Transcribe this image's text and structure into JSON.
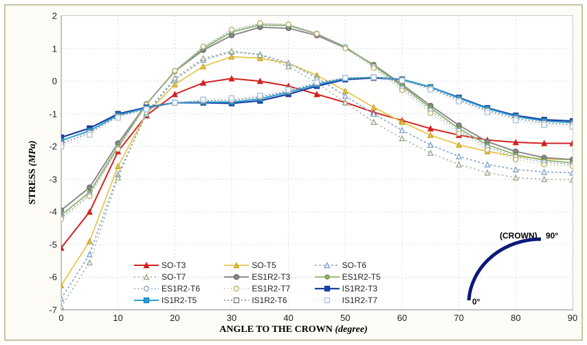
{
  "chart": {
    "type": "line",
    "background_color": "#ffffff",
    "frame_color": "#c7c2a0",
    "grid_color": "#dcdcdc",
    "grid_dash": "2,3",
    "axis_color": "#8a8a8a",
    "xlim": [
      0,
      90
    ],
    "ylim": [
      -7,
      2
    ],
    "xtick_step": 10,
    "ytick_step": 1,
    "x_axis_label": "ANGLE TO THE CROWN",
    "x_axis_unit": "(degree)",
    "y_axis_label": "STRESS",
    "y_axis_unit": "(MPa)",
    "label_fontsize_pt": 14,
    "tick_fontsize_pt": 13,
    "legend_fontsize_pt": 12,
    "legend_cols": 3,
    "x_values": [
      0,
      5,
      10,
      15,
      20,
      25,
      30,
      35,
      40,
      45,
      50,
      55,
      60,
      65,
      70,
      75,
      80,
      85,
      90
    ],
    "series": [
      {
        "name": "SO-T3",
        "color": "#d22222",
        "line_width": 2.0,
        "line_dash": "",
        "marker": "triangle-solid",
        "marker_fill": "#d22222",
        "marker_stroke": "#d22222",
        "marker_size": 7,
        "values": [
          -5.1,
          -4.0,
          -2.15,
          -1.05,
          -0.4,
          -0.05,
          0.08,
          0.0,
          -0.15,
          -0.4,
          -0.65,
          -0.95,
          -1.2,
          -1.45,
          -1.65,
          -1.8,
          -1.87,
          -1.9,
          -1.9
        ]
      },
      {
        "name": "SO-T5",
        "color": "#e8c64b",
        "line_width": 1.8,
        "line_dash": "",
        "marker": "triangle-solid",
        "marker_fill": "#e8c64b",
        "marker_stroke": "#c8a62b",
        "marker_size": 7,
        "values": [
          -6.25,
          -4.9,
          -2.6,
          -1.0,
          -0.1,
          0.45,
          0.75,
          0.7,
          0.55,
          0.18,
          -0.3,
          -0.8,
          -1.25,
          -1.65,
          -1.95,
          -2.15,
          -2.3,
          -2.38,
          -2.4
        ]
      },
      {
        "name": "SO-T6",
        "color": "#7fa3cc",
        "line_width": 1.6,
        "line_dash": "3,3",
        "marker": "triangle-open",
        "marker_fill": "#ffffff",
        "marker_stroke": "#7fa3cc",
        "marker_size": 7,
        "values": [
          -6.65,
          -5.3,
          -2.85,
          -1.0,
          0.05,
          0.65,
          0.9,
          0.82,
          0.55,
          0.1,
          -0.45,
          -1.0,
          -1.5,
          -1.95,
          -2.3,
          -2.55,
          -2.7,
          -2.78,
          -2.8
        ]
      },
      {
        "name": "SO-T7",
        "color": "#9aa98c",
        "line_width": 1.6,
        "line_dash": "2,4",
        "marker": "triangle-open",
        "marker_fill": "#ffffff",
        "marker_stroke": "#9aa98c",
        "marker_size": 7,
        "values": [
          -6.9,
          -5.55,
          -2.95,
          -0.95,
          0.1,
          0.7,
          0.92,
          0.8,
          0.45,
          -0.05,
          -0.65,
          -1.25,
          -1.75,
          -2.2,
          -2.55,
          -2.8,
          -2.95,
          -3.0,
          -3.02
        ]
      },
      {
        "name": "ES1R2-T3",
        "color": "#8a8a8a",
        "line_width": 2.0,
        "line_dash": "",
        "marker": "circle-solid",
        "marker_fill": "#8a8a8a",
        "marker_stroke": "#6a6a6a",
        "marker_size": 7,
        "values": [
          -3.95,
          -3.25,
          -1.9,
          -0.7,
          0.3,
          0.95,
          1.4,
          1.65,
          1.62,
          1.4,
          1.02,
          0.5,
          -0.1,
          -0.75,
          -1.35,
          -1.85,
          -2.15,
          -2.34,
          -2.4
        ]
      },
      {
        "name": "ES1R2-T5",
        "color": "#8fb26a",
        "line_width": 1.8,
        "line_dash": "",
        "marker": "circle-solid",
        "marker_fill": "#8fb26a",
        "marker_stroke": "#6f924a",
        "marker_size": 6,
        "values": [
          -4.1,
          -3.4,
          -2.0,
          -0.7,
          0.3,
          1.0,
          1.5,
          1.72,
          1.7,
          1.45,
          1.05,
          0.48,
          -0.15,
          -0.82,
          -1.45,
          -1.95,
          -2.25,
          -2.42,
          -2.5
        ]
      },
      {
        "name": "ES1R2-T6",
        "color": "#8aa8cc",
        "line_width": 1.6,
        "line_dash": "2,3",
        "marker": "circle-open",
        "marker_fill": "#ffffff",
        "marker_stroke": "#8aa8cc",
        "marker_size": 7,
        "values": [
          -4.18,
          -3.48,
          -2.05,
          -0.72,
          0.32,
          1.05,
          1.55,
          1.76,
          1.73,
          1.46,
          1.04,
          0.45,
          -0.22,
          -0.9,
          -1.52,
          -2.02,
          -2.32,
          -2.48,
          -2.55
        ]
      },
      {
        "name": "ES1R2-T7",
        "color": "#c2b06e",
        "line_width": 1.6,
        "line_dash": "1,4",
        "marker": "circle-open",
        "marker_fill": "#ffffff",
        "marker_stroke": "#c2b06e",
        "marker_size": 7,
        "values": [
          -4.22,
          -3.52,
          -2.08,
          -0.72,
          0.32,
          1.06,
          1.58,
          1.78,
          1.74,
          1.45,
          1.0,
          0.4,
          -0.28,
          -0.98,
          -1.6,
          -2.1,
          -2.4,
          -2.55,
          -2.6
        ]
      },
      {
        "name": "IS1R2-T3",
        "color": "#1a3fa0",
        "line_width": 2.2,
        "line_dash": "",
        "marker": "square-solid",
        "marker_fill": "#1a3fa0",
        "marker_stroke": "#1a3fa0",
        "marker_size": 7,
        "values": [
          -1.72,
          -1.44,
          -1.0,
          -0.8,
          -0.66,
          -0.66,
          -0.68,
          -0.6,
          -0.4,
          -0.15,
          0.05,
          0.1,
          0.05,
          -0.18,
          -0.5,
          -0.82,
          -1.05,
          -1.18,
          -1.22
        ]
      },
      {
        "name": "IS1R2-T5",
        "color": "#2aa0d8",
        "line_width": 2.0,
        "line_dash": "",
        "marker": "square-solid",
        "marker_fill": "#2aa0d8",
        "marker_stroke": "#1a80b8",
        "marker_size": 7,
        "values": [
          -1.82,
          -1.52,
          -1.04,
          -0.82,
          -0.66,
          -0.64,
          -0.64,
          -0.54,
          -0.34,
          -0.1,
          0.08,
          0.12,
          0.06,
          -0.18,
          -0.52,
          -0.84,
          -1.08,
          -1.22,
          -1.27
        ]
      },
      {
        "name": "IS1R2-T6",
        "color": "#808080",
        "line_width": 1.6,
        "line_dash": "2,3",
        "marker": "square-open",
        "marker_fill": "#ffffff",
        "marker_stroke": "#808080",
        "marker_size": 7,
        "values": [
          -1.92,
          -1.58,
          -1.08,
          -0.84,
          -0.66,
          -0.6,
          -0.58,
          -0.48,
          -0.3,
          -0.06,
          0.1,
          0.12,
          0.04,
          -0.22,
          -0.58,
          -0.9,
          -1.14,
          -1.28,
          -1.33
        ]
      },
      {
        "name": "IS1R2-T7",
        "color": "#a8c6e2",
        "line_width": 1.6,
        "line_dash": "1,4",
        "marker": "square-open",
        "marker_fill": "#ffffff",
        "marker_stroke": "#a8c6e2",
        "marker_size": 7,
        "values": [
          -2.0,
          -1.64,
          -1.12,
          -0.86,
          -0.66,
          -0.56,
          -0.52,
          -0.44,
          -0.26,
          -0.04,
          0.1,
          0.12,
          0.02,
          -0.26,
          -0.62,
          -0.95,
          -1.2,
          -1.34,
          -1.4
        ]
      }
    ]
  },
  "inset": {
    "arc_color": "#0b1a7a",
    "arc_width": 5,
    "crown_label": "(CROWN)",
    "angle_top": "90°",
    "angle_bottom": "0°"
  }
}
